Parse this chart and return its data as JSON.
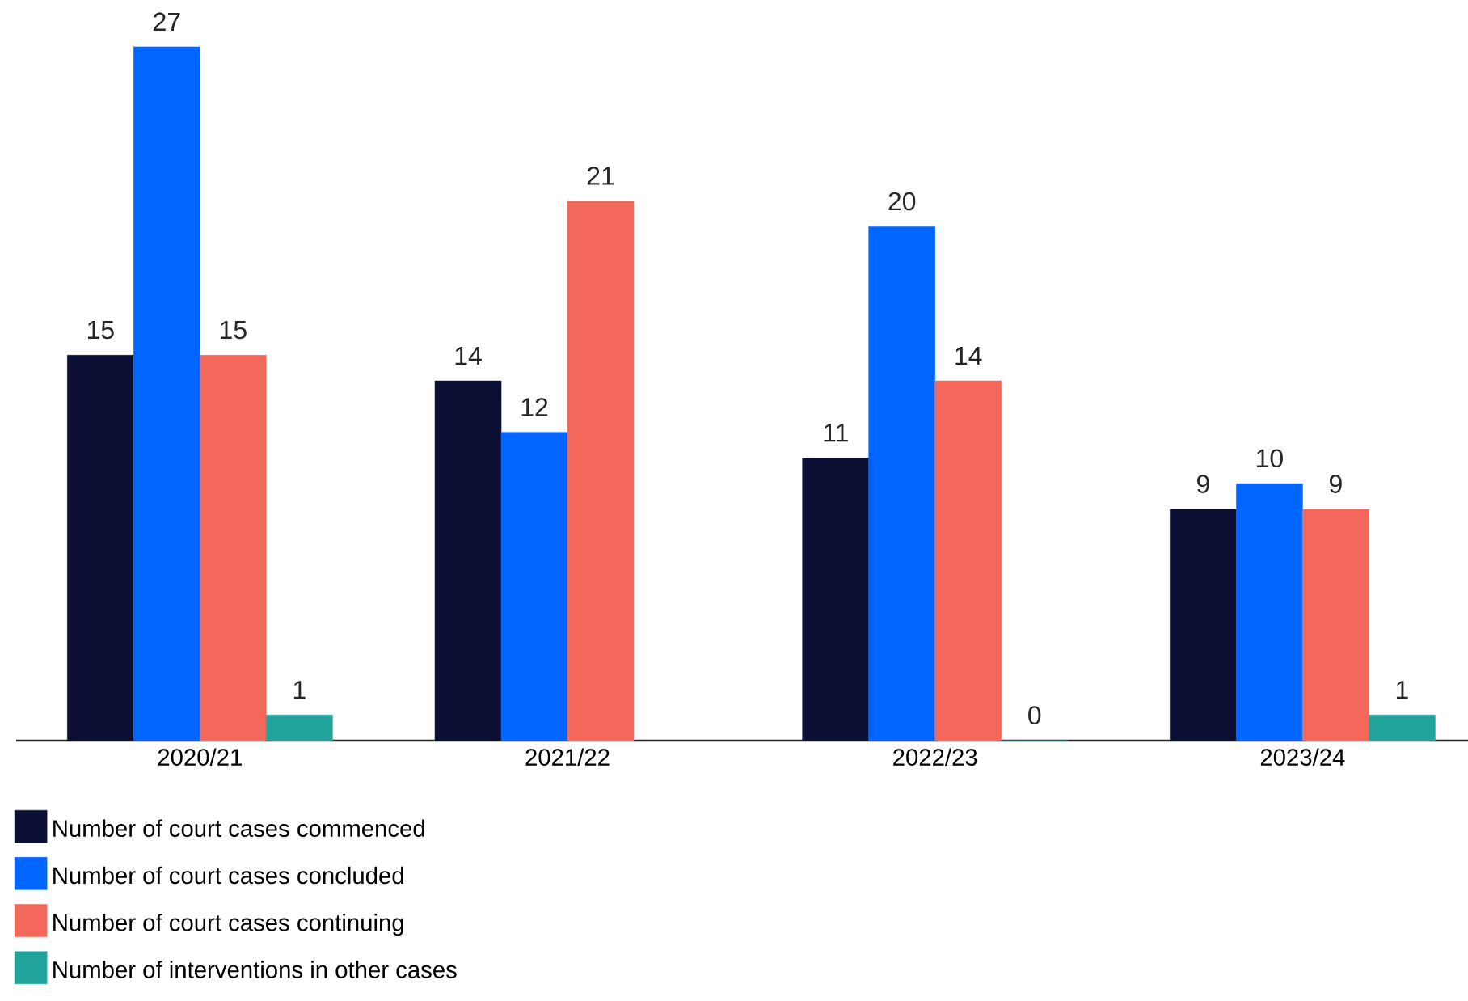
{
  "chart_data": {
    "type": "bar",
    "categories": [
      "2020/21",
      "2021/22",
      "2022/23",
      "2023/24"
    ],
    "series": [
      {
        "name": "Number of court cases commenced",
        "color": "#0b0f33",
        "values": [
          15,
          14,
          11,
          9
        ]
      },
      {
        "name": "Number of court cases concluded",
        "color": "#0066ff",
        "values": [
          27,
          12,
          20,
          10
        ]
      },
      {
        "name": "Number of court cases continuing",
        "color": "#f4675b",
        "values": [
          15,
          21,
          14,
          9
        ]
      },
      {
        "name": "Number of interventions in other cases",
        "color": "#21a39b",
        "values": [
          1,
          null,
          0,
          1
        ]
      }
    ],
    "data_labels": true,
    "legend": "bottom",
    "tick_labels": "x",
    "grid": false
  }
}
